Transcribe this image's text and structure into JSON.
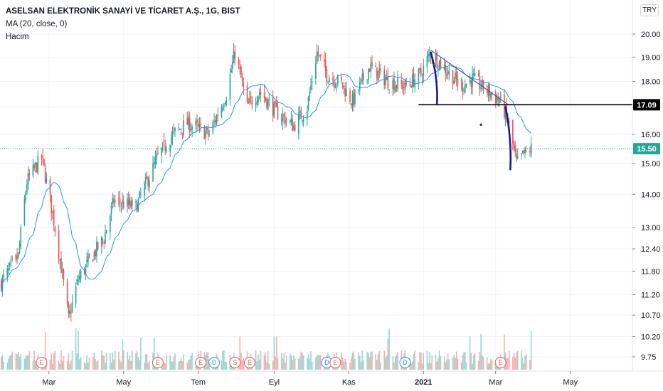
{
  "header": {
    "title": "ASELSAN ELEKTRONİK SANAYİ VE TİCARET A.Ş., 1G, BIST",
    "indicator": "MA (20, close, 0)",
    "volume_label": "Hacim",
    "currency": "TRY"
  },
  "colors": {
    "up": "#26a69a",
    "down": "#ef5350",
    "ma": "#2196f3",
    "trendline": "#3f3f9f",
    "drawing": "#1e1a8c",
    "support": "#000000",
    "last_price_bg": "#26a69a",
    "support_tag_bg": "#000000",
    "grid": "#f0f3fa",
    "axis_border": "#e0e3eb"
  },
  "chart_data": {
    "type": "candlestick",
    "symbol": "ASELSAN",
    "timeframe": "1G",
    "exchange": "BIST",
    "x_axis_labels": [
      "Mar",
      "May",
      "Tem",
      "Eyl",
      "Kas",
      "2021",
      "Mar",
      "May"
    ],
    "y_ticks": [
      20.0,
      19.0,
      18.0,
      17.0,
      16.0,
      15.0,
      14.0,
      13.0,
      12.4,
      11.8,
      11.2,
      10.7,
      10.2,
      9.75
    ],
    "y_tick_labels": [
      "20.00",
      "19.00",
      "18.00",
      "17.00",
      "16.00",
      "15.00",
      "14.00",
      "13.00",
      "12.40",
      "11.80",
      "11.20",
      "10.70",
      "10.20",
      "9.75"
    ],
    "y_scale": "log",
    "ylim": [
      9.5,
      21.5
    ],
    "last_price": 15.5,
    "last_price_label": "15.50",
    "support_level": 17.09,
    "support_label": "17.09",
    "grid": true,
    "key_points": [
      {
        "date": "2020-01-22",
        "close": 11.5
      },
      {
        "date": "2020-02-05",
        "close": 12.2
      },
      {
        "date": "2020-02-12",
        "close": 14.4
      },
      {
        "date": "2020-02-24",
        "close": 15.2
      },
      {
        "date": "2020-03-05",
        "close": 13.2
      },
      {
        "date": "2020-03-17",
        "close": 10.6
      },
      {
        "date": "2020-03-25",
        "close": 11.6
      },
      {
        "date": "2020-04-15",
        "close": 12.7
      },
      {
        "date": "2020-04-23",
        "close": 13.8
      },
      {
        "date": "2020-05-11",
        "close": 13.6
      },
      {
        "date": "2020-05-29",
        "close": 15.2
      },
      {
        "date": "2020-06-10",
        "close": 16.0
      },
      {
        "date": "2020-06-22",
        "close": 16.4
      },
      {
        "date": "2020-07-10",
        "close": 16.0
      },
      {
        "date": "2020-07-24",
        "close": 17.5
      },
      {
        "date": "2020-07-31",
        "close": 19.2
      },
      {
        "date": "2020-08-10",
        "close": 17.0
      },
      {
        "date": "2020-08-20",
        "close": 17.6
      },
      {
        "date": "2020-09-03",
        "close": 16.8
      },
      {
        "date": "2020-09-17",
        "close": 16.3
      },
      {
        "date": "2020-09-28",
        "close": 17.0
      },
      {
        "date": "2020-10-06",
        "close": 19.2
      },
      {
        "date": "2020-10-14",
        "close": 18.3
      },
      {
        "date": "2020-10-26",
        "close": 17.9
      },
      {
        "date": "2020-11-04",
        "close": 17.2
      },
      {
        "date": "2020-11-18",
        "close": 18.6
      },
      {
        "date": "2020-12-03",
        "close": 18.0
      },
      {
        "date": "2020-12-17",
        "close": 17.8
      },
      {
        "date": "2020-12-30",
        "close": 18.3
      },
      {
        "date": "2021-01-07",
        "close": 19.2
      },
      {
        "date": "2021-01-19",
        "close": 18.5
      },
      {
        "date": "2021-02-01",
        "close": 17.8
      },
      {
        "date": "2021-02-10",
        "close": 18.1
      },
      {
        "date": "2021-02-23",
        "close": 17.6
      },
      {
        "date": "2021-03-05",
        "close": 17.2
      },
      {
        "date": "2021-03-11",
        "close": 16.5
      },
      {
        "date": "2021-03-18",
        "close": 15.0
      },
      {
        "date": "2021-03-24",
        "close": 15.3
      },
      {
        "date": "2021-03-30",
        "close": 15.5
      }
    ],
    "annotations": [
      {
        "type": "trendline",
        "from": {
          "date": "2021-01-07",
          "price": 19.3
        },
        "to": {
          "date": "2021-03-11",
          "price": 17.1
        }
      },
      {
        "type": "horizontal_line",
        "price": 17.09,
        "from_date": "2020-12-28"
      },
      {
        "type": "hand_drawn_arrow",
        "from": {
          "date": "2021-01-07",
          "price": 19.2
        },
        "to": {
          "date": "2021-01-12",
          "price": 17.1
        }
      },
      {
        "type": "hand_drawn_arrow",
        "from": {
          "date": "2021-03-09",
          "price": 17.0
        },
        "to": {
          "date": "2021-03-13",
          "price": 14.8
        }
      }
    ],
    "events": [
      {
        "label": "E",
        "date": "2020-02-24",
        "kind": "earnings"
      },
      {
        "label": "E",
        "date": "2020-05-29",
        "kind": "earnings"
      },
      {
        "label": "E",
        "date": "2020-07-03",
        "kind": "earnings"
      },
      {
        "label": "D",
        "date": "2020-07-14",
        "kind": "dividend"
      },
      {
        "label": "S",
        "date": "2020-07-31",
        "kind": "split"
      },
      {
        "label": "E",
        "date": "2020-08-12",
        "kind": "earnings"
      },
      {
        "label": "D",
        "date": "2020-10-14",
        "kind": "dividend"
      },
      {
        "label": "E",
        "date": "2020-10-21",
        "kind": "earnings"
      },
      {
        "label": "D",
        "date": "2020-12-17",
        "kind": "dividend"
      },
      {
        "label": "E",
        "date": "2021-03-05",
        "kind": "earnings"
      }
    ]
  }
}
